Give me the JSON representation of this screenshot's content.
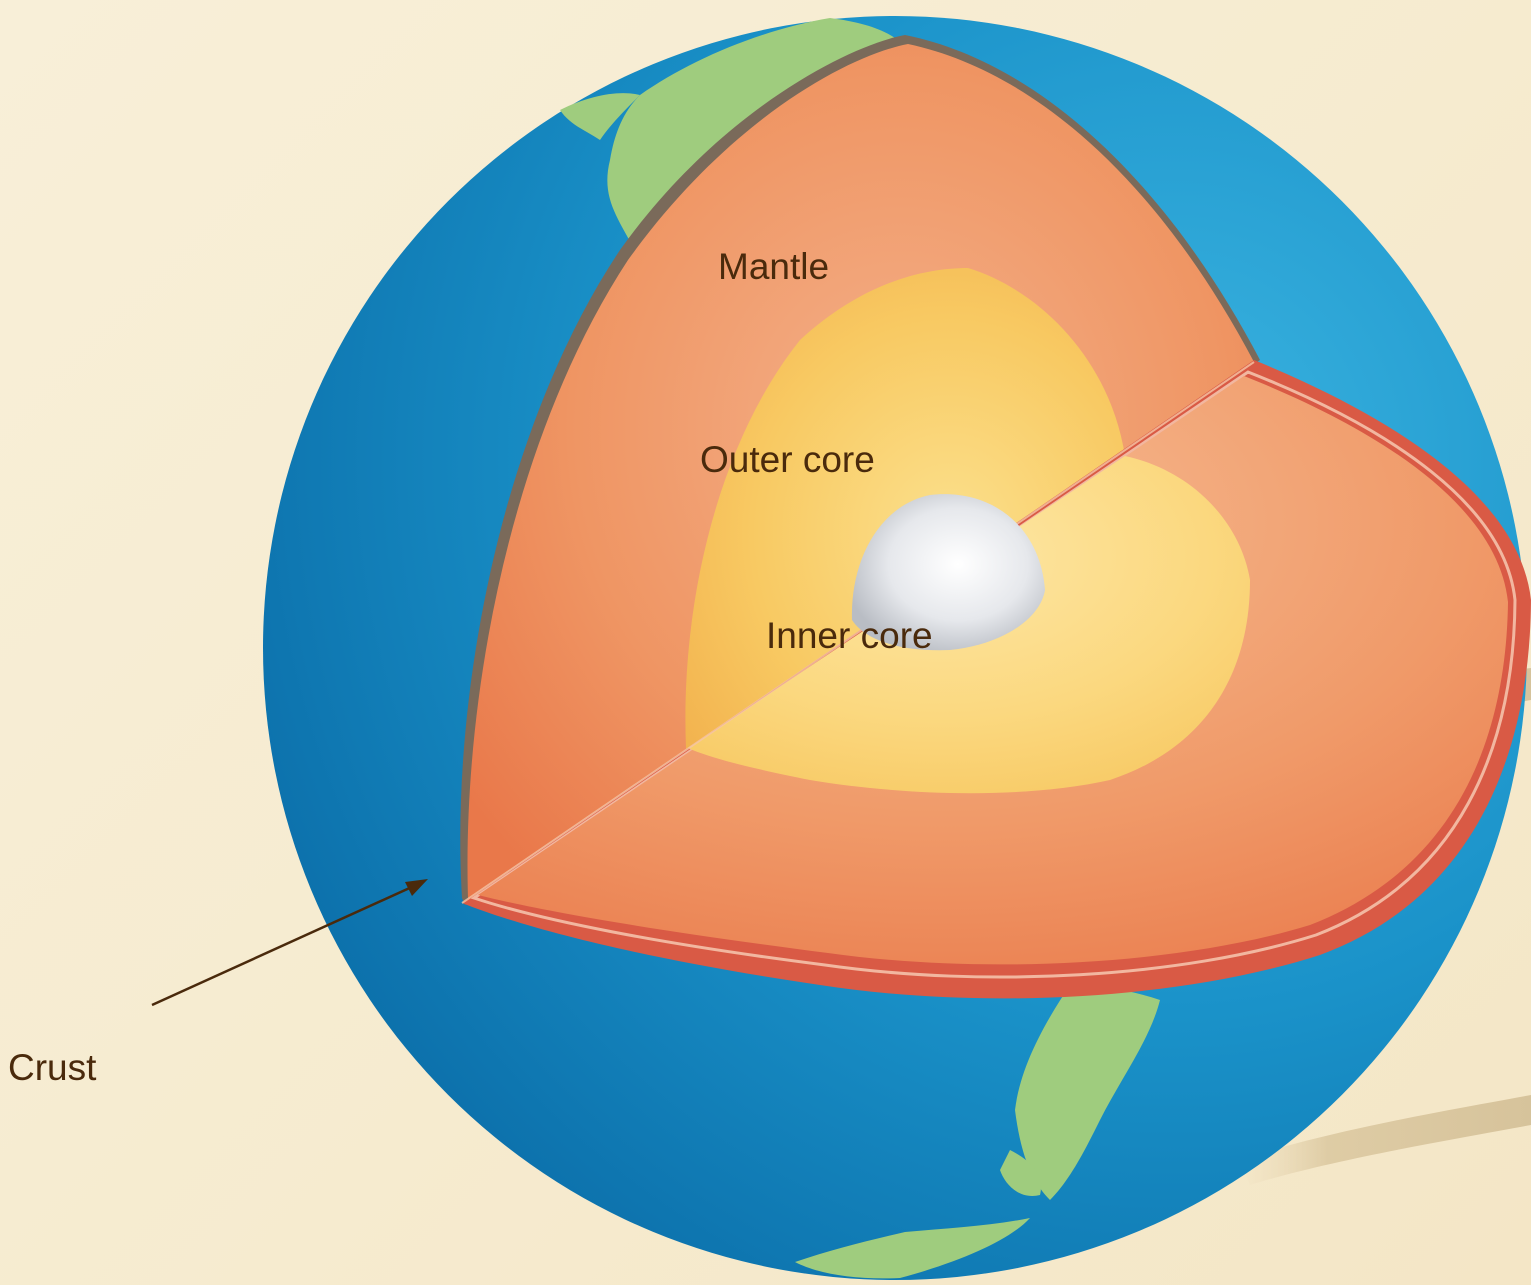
{
  "labels": {
    "mantle": "Mantle",
    "outer_core": "Outer core",
    "inner_core": "Inner core",
    "crust": "Crust"
  },
  "colors": {
    "background": "#f7ecd2",
    "ocean": "#1a90c8",
    "land": "#9fcc7e",
    "crust": "#d95a45",
    "mantle": "#ee8a55",
    "outer_core": "#f8c65c",
    "inner_core": "#e4e6ea",
    "label_text": "#4a2a0c"
  }
}
